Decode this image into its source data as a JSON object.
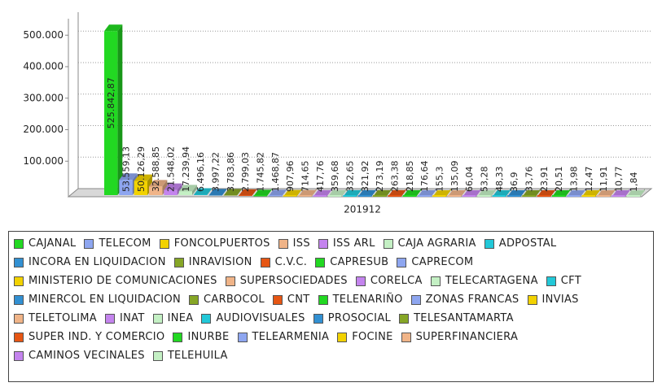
{
  "chart_data": {
    "type": "bar3d",
    "categories": [
      "201912"
    ],
    "ylim": [
      0,
      560000
    ],
    "yticks": [
      {
        "value": 100000,
        "label": "100.000"
      },
      {
        "value": 200000,
        "label": "200.000"
      },
      {
        "value": 300000,
        "label": "300.000"
      },
      {
        "value": 400000,
        "label": "400.000"
      },
      {
        "value": 500000,
        "label": "500.000"
      }
    ],
    "grid": true,
    "series": [
      {
        "name": "CAJANAL",
        "color": "#22d822",
        "values": [
          525842.87
        ],
        "value_labels": [
          "525.842,87"
        ]
      },
      {
        "name": "TELECOM",
        "color": "#8ea6f0",
        "values": [
          53559.13
        ],
        "value_labels": [
          "53.559,13"
        ]
      },
      {
        "name": "FONCOLPUERTOS",
        "color": "#f2d200",
        "values": [
          50126.29
        ],
        "value_labels": [
          "50.126,29"
        ]
      },
      {
        "name": "ISS",
        "color": "#f0b488",
        "values": [
          32588.85
        ],
        "value_labels": [
          "32.588,85"
        ]
      },
      {
        "name": "ISS ARL",
        "color": "#c484ee",
        "values": [
          21548.02
        ],
        "value_labels": [
          "21.548,02"
        ]
      },
      {
        "name": "CAJA AGRARIA",
        "color": "#c4f0c4",
        "values": [
          17239.94
        ],
        "value_labels": [
          "17.239,94"
        ]
      },
      {
        "name": "ADPOSTAL",
        "color": "#22c8d8",
        "values": [
          6496.16
        ],
        "value_labels": [
          "6.496,16"
        ]
      },
      {
        "name": "INCORA EN LIQUIDACION",
        "color": "#3290d2",
        "values": [
          3997.22
        ],
        "value_labels": [
          "3.997,22"
        ]
      },
      {
        "name": "INRAVISION",
        "color": "#86a626",
        "values": [
          3783.86
        ],
        "value_labels": [
          "3.783,86"
        ]
      },
      {
        "name": "C.V.C.",
        "color": "#e65614",
        "values": [
          2799.03
        ],
        "value_labels": [
          "2.799,03"
        ]
      },
      {
        "name": "CAPRESUB",
        "color": "#22d822",
        "values": [
          1745.82
        ],
        "value_labels": [
          "1.745,82"
        ]
      },
      {
        "name": "CAPRECOM",
        "color": "#8ea6f0",
        "values": [
          1468.87
        ],
        "value_labels": [
          "1.468,87"
        ]
      },
      {
        "name": "MINISTERIO DE COMUNICACIONES",
        "color": "#f2d200",
        "values": [
          907.96
        ],
        "value_labels": [
          "907,96"
        ]
      },
      {
        "name": "SUPERSOCIEDADES",
        "color": "#f0b488",
        "values": [
          714.65
        ],
        "value_labels": [
          "714,65"
        ]
      },
      {
        "name": "CORELCA",
        "color": "#c484ee",
        "values": [
          417.76
        ],
        "value_labels": [
          "417,76"
        ]
      },
      {
        "name": "TELECARTAGENA",
        "color": "#c4f0c4",
        "values": [
          359.68
        ],
        "value_labels": [
          "359,68"
        ]
      },
      {
        "name": "CFT",
        "color": "#22c8d8",
        "values": [
          332.65
        ],
        "value_labels": [
          "332,65"
        ]
      },
      {
        "name": "MINERCOL EN LIQUIDACION",
        "color": "#3290d2",
        "values": [
          321.92
        ],
        "value_labels": [
          "321,92"
        ]
      },
      {
        "name": "CARBOCOL",
        "color": "#86a626",
        "values": [
          273.19
        ],
        "value_labels": [
          "273,19"
        ]
      },
      {
        "name": "CNT",
        "color": "#e65614",
        "values": [
          263.38
        ],
        "value_labels": [
          "263,38"
        ]
      },
      {
        "name": "TELENARIÑO",
        "color": "#22d822",
        "values": [
          218.85
        ],
        "value_labels": [
          "218,85"
        ]
      },
      {
        "name": "ZONAS FRANCAS",
        "color": "#8ea6f0",
        "values": [
          176.64
        ],
        "value_labels": [
          "176,64"
        ]
      },
      {
        "name": "INVIAS",
        "color": "#f2d200",
        "values": [
          155.3
        ],
        "value_labels": [
          "155,3"
        ]
      },
      {
        "name": "TELETOLIMA",
        "color": "#f0b488",
        "values": [
          135.09
        ],
        "value_labels": [
          "135,09"
        ]
      },
      {
        "name": "INAT",
        "color": "#c484ee",
        "values": [
          66.04
        ],
        "value_labels": [
          "66,04"
        ]
      },
      {
        "name": "INEA",
        "color": "#c4f0c4",
        "values": [
          53.28
        ],
        "value_labels": [
          "53,28"
        ]
      },
      {
        "name": "AUDIOVISUALES",
        "color": "#22c8d8",
        "values": [
          48.33
        ],
        "value_labels": [
          "48,33"
        ]
      },
      {
        "name": "PROSOCIAL",
        "color": "#3290d2",
        "values": [
          36.9
        ],
        "value_labels": [
          "36,9"
        ]
      },
      {
        "name": "TELESANTAMARTA",
        "color": "#86a626",
        "values": [
          33.76
        ],
        "value_labels": [
          "33,76"
        ]
      },
      {
        "name": "SUPER IND. Y COMERCIO",
        "color": "#e65614",
        "values": [
          23.91
        ],
        "value_labels": [
          "23,91"
        ]
      },
      {
        "name": "INURBE",
        "color": "#22d822",
        "values": [
          20.51
        ],
        "value_labels": [
          "20,51"
        ]
      },
      {
        "name": "TELEARMENIA",
        "color": "#8ea6f0",
        "values": [
          13.98
        ],
        "value_labels": [
          "13,98"
        ]
      },
      {
        "name": "FOCINE",
        "color": "#f2d200",
        "values": [
          12.47
        ],
        "value_labels": [
          "12,47"
        ]
      },
      {
        "name": "SUPERFINANCIERA",
        "color": "#f0b488",
        "values": [
          11.91
        ],
        "value_labels": [
          "11,91"
        ]
      },
      {
        "name": "CAMINOS VECINALES",
        "color": "#c484ee",
        "values": [
          10.77
        ],
        "value_labels": [
          "10,77"
        ]
      },
      {
        "name": "TELEHUILA",
        "color": "#c4f0c4",
        "values": [
          1.84
        ],
        "value_labels": [
          "1,84"
        ]
      }
    ]
  }
}
